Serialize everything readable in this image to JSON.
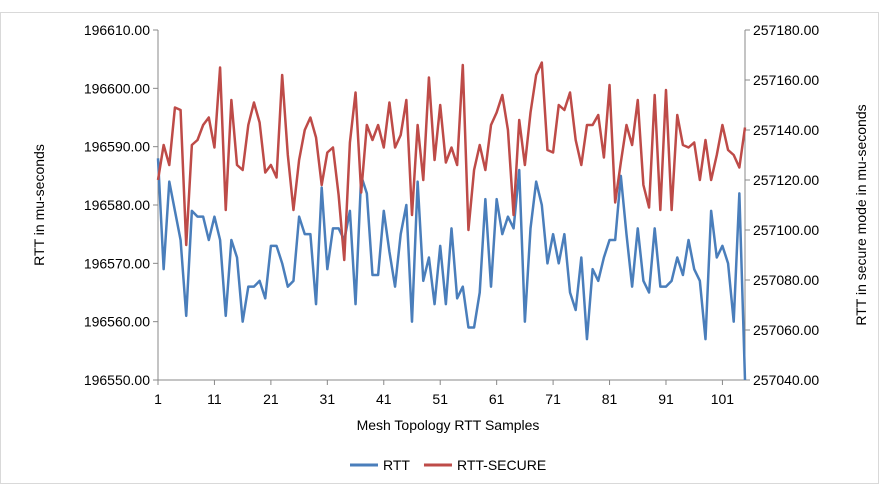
{
  "chart_data": {
    "type": "line",
    "x_label": "Mesh Topology RTT Samples",
    "y_label": "RTT in mu-seconds",
    "y2_label": "RTT in secure mode in mu-seconds",
    "x": [
      1,
      2,
      3,
      4,
      5,
      6,
      7,
      8,
      9,
      10,
      11,
      12,
      13,
      14,
      15,
      16,
      17,
      18,
      19,
      20,
      21,
      22,
      23,
      24,
      25,
      26,
      27,
      28,
      29,
      30,
      31,
      32,
      33,
      34,
      35,
      36,
      37,
      38,
      39,
      40,
      41,
      42,
      43,
      44,
      45,
      46,
      47,
      48,
      49,
      50,
      51,
      52,
      53,
      54,
      55,
      56,
      57,
      58,
      59,
      60,
      61,
      62,
      63,
      64,
      65,
      66,
      67,
      68,
      69,
      70,
      71,
      72,
      73,
      74,
      75,
      76,
      77,
      78,
      79,
      80,
      81,
      82,
      83,
      84,
      85,
      86,
      87,
      88,
      89,
      90,
      91,
      92,
      93,
      94,
      95,
      96,
      97,
      98,
      99,
      100,
      101,
      102,
      103,
      104,
      105
    ],
    "xlim": [
      1,
      105
    ],
    "xticks": [
      1,
      11,
      21,
      31,
      41,
      51,
      61,
      71,
      81,
      91,
      101
    ],
    "ylim": [
      196550,
      196610
    ],
    "yticks": [
      {
        "value": 196550,
        "label": "196550.00"
      },
      {
        "value": 196560,
        "label": "196560.00"
      },
      {
        "value": 196570,
        "label": "196570.00"
      },
      {
        "value": 196580,
        "label": "196580.00"
      },
      {
        "value": 196590,
        "label": "196590.00"
      },
      {
        "value": 196600,
        "label": "196600.00"
      },
      {
        "value": 196610,
        "label": "196610.00"
      }
    ],
    "y2lim": [
      257040,
      257180
    ],
    "y2ticks": [
      {
        "value": 257040,
        "label": "257040.00"
      },
      {
        "value": 257060,
        "label": "257060.00"
      },
      {
        "value": 257080,
        "label": "257080.00"
      },
      {
        "value": 257100,
        "label": "257100.00"
      },
      {
        "value": 257120,
        "label": "257120.00"
      },
      {
        "value": 257140,
        "label": "257140.00"
      },
      {
        "value": 257160,
        "label": "257160.00"
      },
      {
        "value": 257180,
        "label": "257180.00"
      }
    ],
    "legend": "bottom",
    "series": [
      {
        "name": "RTT",
        "color": "#4a7ebb",
        "values": [
          196588,
          196569,
          196584,
          196579,
          196574,
          196561,
          196579,
          196578,
          196578,
          196574,
          196578,
          196574,
          196561,
          196574,
          196571,
          196560,
          196566,
          196566,
          196567,
          196564,
          196573,
          196573,
          196570,
          196566,
          196567,
          196578,
          196575,
          196575,
          196563,
          196583,
          196569,
          196576,
          196576,
          196574,
          196579,
          196563,
          196585,
          196582,
          196568,
          196568,
          196579,
          196572,
          196566,
          196575,
          196580,
          196560,
          196584,
          196567,
          196571,
          196563,
          196573,
          196563,
          196576,
          196564,
          196566,
          196559,
          196559,
          196565,
          196581,
          196566,
          196581,
          196575,
          196578,
          196576,
          196586,
          196560,
          196576,
          196584,
          196580,
          196570,
          196575,
          196570,
          196575,
          196565,
          196562,
          196571,
          196557,
          196569,
          196567,
          196571,
          196574,
          196574,
          196585,
          196575,
          196566,
          196576,
          196567,
          196565,
          196576,
          196566,
          196566,
          196567,
          196571,
          196568,
          196574,
          196569,
          196567,
          196557,
          196579,
          196571,
          196573,
          196570,
          196560,
          196582,
          196550
        ]
      },
      {
        "name": "RTT-SECURE",
        "color": "#be4b48",
        "axis": "y2",
        "values": [
          257120,
          257134,
          257126,
          257149,
          257148,
          257094,
          257134,
          257136,
          257142,
          257145,
          257133,
          257165,
          257108,
          257152,
          257126,
          257124,
          257142,
          257151,
          257143,
          257123,
          257126,
          257121,
          257162,
          257130,
          257108,
          257128,
          257140,
          257145,
          257137,
          257118,
          257131,
          257133,
          257114,
          257088,
          257135,
          257155,
          257115,
          257142,
          257136,
          257142,
          257133,
          257151,
          257133,
          257138,
          257152,
          257106,
          257142,
          257120,
          257161,
          257128,
          257150,
          257127,
          257133,
          257126,
          257166,
          257100,
          257124,
          257134,
          257124,
          257142,
          257147,
          257154,
          257140,
          257106,
          257144,
          257126,
          257147,
          257162,
          257167,
          257132,
          257131,
          257150,
          257148,
          257155,
          257136,
          257126,
          257142,
          257142,
          257146,
          257129,
          257158,
          257111,
          257127,
          257142,
          257134,
          257152,
          257118,
          257109,
          257154,
          257108,
          257156,
          257108,
          257146,
          257134,
          257133,
          257135,
          257120,
          257136,
          257120,
          257130,
          257142,
          257132,
          257130,
          257125,
          257141
        ]
      }
    ]
  }
}
